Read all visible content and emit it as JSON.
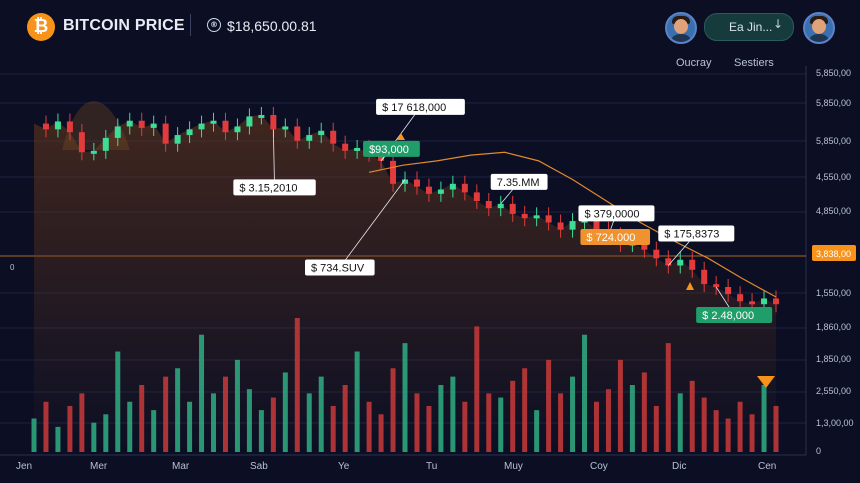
{
  "header": {
    "logo_glyph": "₿",
    "title": "BITCOIN PRICE",
    "price_glyph": "®",
    "price": "$18,650.00.81",
    "user_label": "Ea Jin...",
    "user_chevron": "↓",
    "icons": [
      "bitcoin-logo-icon",
      "price-icon",
      "avatar-icon",
      "chevron-down-icon"
    ]
  },
  "tabs": [
    "Oucray",
    "Sestiers"
  ],
  "colors": {
    "background": "#0c0f24",
    "up": "#3ddc97",
    "down": "#e23b3b",
    "accent": "#f7931a",
    "ma_line": "#e08a2a",
    "axis_label": "#b8c0d4"
  },
  "chart_data": {
    "type": "candlestick",
    "title": "BITCOIN PRICE",
    "current_price": "$18,650.00.81",
    "x_labels": [
      "Jen",
      "Mer",
      "Mar",
      "Sab",
      "Ye",
      "Tu",
      "Muy",
      "Coy",
      "Dic",
      "Cen"
    ],
    "y_ticks": [
      "5,850,00",
      "5,850,00",
      "5,850,00",
      "4,550,00",
      "4,850,00",
      "4,850,00",
      "1,550,00",
      "1,860,00",
      "1,850,00",
      "2,550,00",
      "1,3,00,00",
      "0"
    ],
    "price_line_label": "3,838,00",
    "left_marker": "0",
    "grid": true,
    "price_path": [
      1640,
      1600,
      1655,
      1580,
      1440,
      1450,
      1540,
      1620,
      1660,
      1610,
      1640,
      1500,
      1560,
      1600,
      1640,
      1660,
      1580,
      1620,
      1690,
      1700,
      1600,
      1620,
      1520,
      1560,
      1590,
      1500,
      1450,
      1470,
      1430,
      1380,
      1220,
      1250,
      1200,
      1150,
      1180,
      1220,
      1160,
      1100,
      1050,
      1080,
      1010,
      980,
      1000,
      950,
      900,
      960,
      970,
      900,
      860,
      800,
      810,
      760,
      700,
      650,
      690,
      620,
      520,
      500,
      450,
      400,
      380,
      420,
      380
    ],
    "price_range": [
      200,
      2000
    ],
    "volumes": [
      40,
      60,
      30,
      55,
      70,
      35,
      45,
      120,
      60,
      80,
      50,
      90,
      100,
      60,
      140,
      70,
      90,
      110,
      75,
      50,
      65,
      95,
      160,
      70,
      90,
      55,
      80,
      120,
      60,
      45,
      100,
      130,
      70,
      55,
      80,
      90,
      60,
      150,
      70,
      65,
      85,
      100,
      50,
      110,
      70,
      90,
      140,
      60,
      75,
      110,
      80,
      95,
      55,
      130,
      70,
      85,
      65,
      50,
      40,
      60,
      45,
      80,
      55
    ],
    "moving_average": [
      1300,
      1350,
      1380,
      1420,
      1440,
      1380,
      1250,
      1100,
      950,
      820,
      700,
      560,
      430
    ],
    "annotations": [
      {
        "text": "$ 17 618,000",
        "style": "white",
        "point_index": 29
      },
      {
        "text": "$93,000",
        "style": "green",
        "point_index": 29
      },
      {
        "text": "$ 3.15,2010",
        "style": "white",
        "point_index": 20
      },
      {
        "text": "$ 734.SUV",
        "style": "white",
        "point_index": 31
      },
      {
        "text": "7.35.MM",
        "style": "white",
        "point_index": 39
      },
      {
        "text": "$ 379,0000",
        "style": "white",
        "point_index": 48
      },
      {
        "text": "$ 175,8373",
        "style": "white",
        "point_index": 53
      },
      {
        "text": "$ 724.000",
        "style": "orange",
        "point_index": 49
      },
      {
        "text": "$ 2.48,000",
        "style": "green",
        "point_index": 57
      }
    ]
  }
}
